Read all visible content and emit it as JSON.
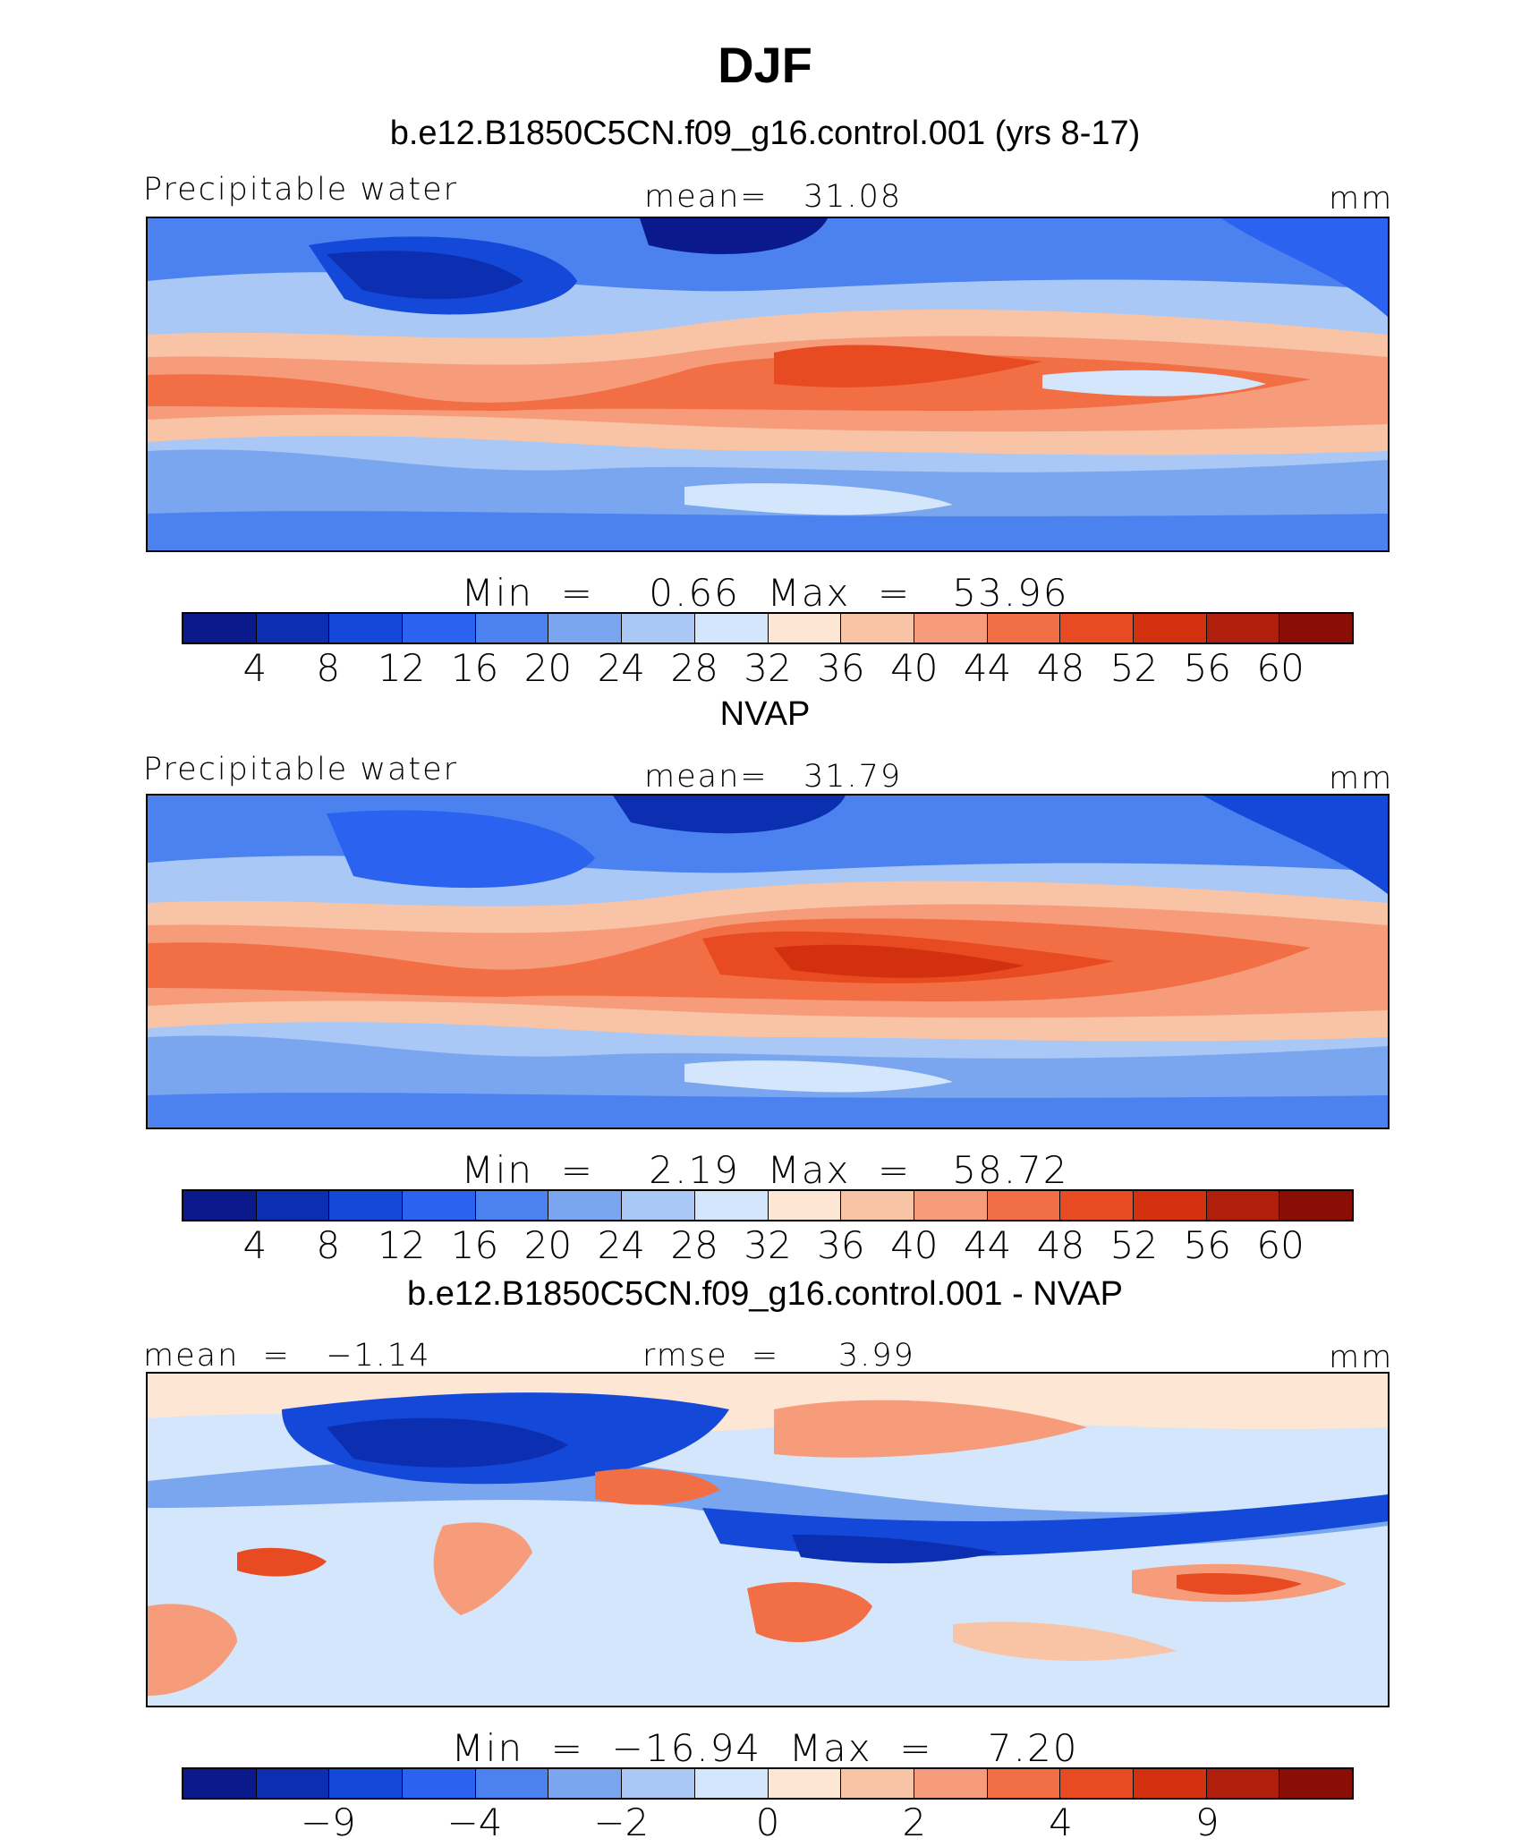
{
  "figure": {
    "season": "DJF",
    "panels": [
      {
        "title": "b.e12.B1850C5CN.f09_g16.control.001 (yrs 8-17)",
        "left_label": "Precipitable water",
        "center_label": "mean=   31.08",
        "right_label": "mm",
        "minmax": "Min  =    0.66  Max  =   53.96",
        "colorbar_ticks": [
          "4",
          "8",
          "12",
          "16",
          "20",
          "24",
          "28",
          "32",
          "36",
          "40",
          "44",
          "48",
          "52",
          "56",
          "60"
        ]
      },
      {
        "title": "NVAP",
        "left_label": "Precipitable water",
        "center_label": "mean=   31.79",
        "right_label": "mm",
        "minmax": "Min  =    2.19  Max  =   58.72",
        "colorbar_ticks": [
          "4",
          "8",
          "12",
          "16",
          "20",
          "24",
          "28",
          "32",
          "36",
          "40",
          "44",
          "48",
          "52",
          "56",
          "60"
        ]
      },
      {
        "title": "b.e12.B1850C5CN.f09_g16.control.001 - NVAP",
        "left_label": "mean  =   −1.14",
        "center_label": "rmse  =     3.99",
        "right_label": "mm",
        "minmax": "Min  =  −16.94  Max  =    7.20",
        "colorbar_ticks": [
          "−9",
          "−4",
          "−2",
          "0",
          "2",
          "4",
          "9"
        ]
      }
    ]
  },
  "colors": {
    "palette": [
      "#0a1a8c",
      "#0b2fb0",
      "#1448d8",
      "#2b63f0",
      "#4b82f0",
      "#7aa6f0",
      "#a9c8f6",
      "#d4e6fb",
      "#fde6d4",
      "#f9c4a6",
      "#f69c7a",
      "#f26e45",
      "#e84a22",
      "#d33010",
      "#b01f0c",
      "#8b0e06"
    ]
  }
}
